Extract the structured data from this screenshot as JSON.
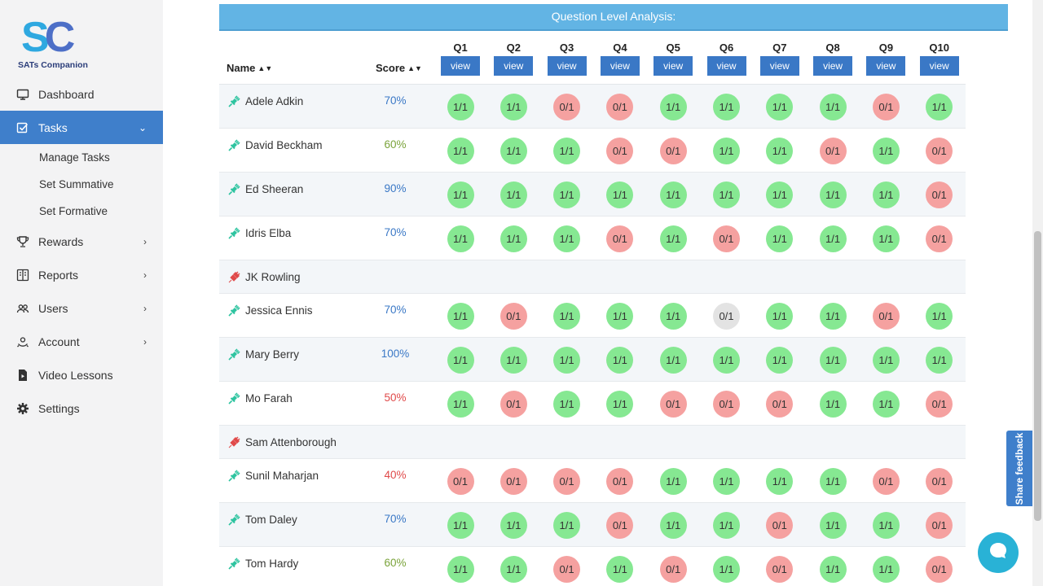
{
  "brand": {
    "logo_text": "SATs Companion"
  },
  "sidebar": {
    "items": [
      {
        "label": "Dashboard",
        "icon": "monitor-icon"
      },
      {
        "label": "Tasks",
        "icon": "tasks-icon",
        "active": true
      },
      {
        "label": "Rewards",
        "icon": "trophy-icon"
      },
      {
        "label": "Reports",
        "icon": "reports-icon"
      },
      {
        "label": "Users",
        "icon": "users-icon"
      },
      {
        "label": "Account",
        "icon": "account-icon"
      },
      {
        "label": "Video Lessons",
        "icon": "video-file-icon"
      },
      {
        "label": "Settings",
        "icon": "gear-icon"
      }
    ],
    "tasks_sub": [
      "Manage Tasks",
      "Set Summative",
      "Set Formative"
    ]
  },
  "analysis": {
    "title": "Question Level Analysis:",
    "name_header": "Name",
    "score_header": "Score",
    "view_label": "view",
    "questions": [
      "Q1",
      "Q2",
      "Q3",
      "Q4",
      "Q5",
      "Q6",
      "Q7",
      "Q8",
      "Q9",
      "Q10"
    ],
    "rows": [
      {
        "name": "Adele Adkin",
        "score": "70%",
        "score_color": "#3a78c6",
        "connected": true,
        "results": [
          "1/1",
          "1/1",
          "0/1",
          "0/1",
          "1/1",
          "1/1",
          "1/1",
          "1/1",
          "0/1",
          "1/1"
        ],
        "status": [
          "g",
          "g",
          "r",
          "r",
          "g",
          "g",
          "g",
          "g",
          "r",
          "g"
        ]
      },
      {
        "name": "David Beckham",
        "score": "60%",
        "score_color": "#7aa33a",
        "connected": true,
        "results": [
          "1/1",
          "1/1",
          "1/1",
          "0/1",
          "0/1",
          "1/1",
          "1/1",
          "0/1",
          "1/1",
          "0/1"
        ],
        "status": [
          "g",
          "g",
          "g",
          "r",
          "r",
          "g",
          "g",
          "r",
          "g",
          "r"
        ]
      },
      {
        "name": "Ed Sheeran",
        "score": "90%",
        "score_color": "#3a78c6",
        "connected": true,
        "results": [
          "1/1",
          "1/1",
          "1/1",
          "1/1",
          "1/1",
          "1/1",
          "1/1",
          "1/1",
          "1/1",
          "0/1"
        ],
        "status": [
          "g",
          "g",
          "g",
          "g",
          "g",
          "g",
          "g",
          "g",
          "g",
          "r"
        ]
      },
      {
        "name": "Idris Elba",
        "score": "70%",
        "score_color": "#3a78c6",
        "connected": true,
        "results": [
          "1/1",
          "1/1",
          "1/1",
          "0/1",
          "1/1",
          "0/1",
          "1/1",
          "1/1",
          "1/1",
          "0/1"
        ],
        "status": [
          "g",
          "g",
          "g",
          "r",
          "g",
          "r",
          "g",
          "g",
          "g",
          "r"
        ]
      },
      {
        "name": "JK Rowling",
        "score": "",
        "score_color": "#333333",
        "connected": false,
        "results": [],
        "status": []
      },
      {
        "name": "Jessica Ennis",
        "score": "70%",
        "score_color": "#3a78c6",
        "connected": true,
        "results": [
          "1/1",
          "0/1",
          "1/1",
          "1/1",
          "1/1",
          "0/1",
          "1/1",
          "1/1",
          "0/1",
          "1/1"
        ],
        "status": [
          "g",
          "r",
          "g",
          "g",
          "g",
          "x",
          "g",
          "g",
          "r",
          "g"
        ]
      },
      {
        "name": "Mary Berry",
        "score": "100%",
        "score_color": "#3a78c6",
        "connected": true,
        "results": [
          "1/1",
          "1/1",
          "1/1",
          "1/1",
          "1/1",
          "1/1",
          "1/1",
          "1/1",
          "1/1",
          "1/1"
        ],
        "status": [
          "g",
          "g",
          "g",
          "g",
          "g",
          "g",
          "g",
          "g",
          "g",
          "g"
        ]
      },
      {
        "name": "Mo Farah",
        "score": "50%",
        "score_color": "#e04a4a",
        "connected": true,
        "results": [
          "1/1",
          "0/1",
          "1/1",
          "1/1",
          "0/1",
          "0/1",
          "0/1",
          "1/1",
          "1/1",
          "0/1"
        ],
        "status": [
          "g",
          "r",
          "g",
          "g",
          "r",
          "r",
          "r",
          "g",
          "g",
          "r"
        ]
      },
      {
        "name": "Sam Attenborough",
        "score": "",
        "score_color": "#333333",
        "connected": false,
        "results": [],
        "status": []
      },
      {
        "name": "Sunil Maharjan",
        "score": "40%",
        "score_color": "#e04a4a",
        "connected": true,
        "results": [
          "0/1",
          "0/1",
          "0/1",
          "0/1",
          "1/1",
          "1/1",
          "1/1",
          "1/1",
          "0/1",
          "0/1"
        ],
        "status": [
          "r",
          "r",
          "r",
          "r",
          "g",
          "g",
          "g",
          "g",
          "r",
          "r"
        ]
      },
      {
        "name": "Tom Daley",
        "score": "70%",
        "score_color": "#3a78c6",
        "connected": true,
        "results": [
          "1/1",
          "1/1",
          "1/1",
          "0/1",
          "1/1",
          "1/1",
          "0/1",
          "1/1",
          "1/1",
          "0/1"
        ],
        "status": [
          "g",
          "g",
          "g",
          "r",
          "g",
          "g",
          "r",
          "g",
          "g",
          "r"
        ]
      },
      {
        "name": "Tom Hardy",
        "score": "60%",
        "score_color": "#7aa33a",
        "connected": true,
        "results": [
          "1/1",
          "1/1",
          "0/1",
          "1/1",
          "0/1",
          "1/1",
          "0/1",
          "1/1",
          "1/1",
          "0/1"
        ],
        "status": [
          "g",
          "g",
          "r",
          "g",
          "r",
          "g",
          "r",
          "g",
          "g",
          "r"
        ]
      }
    ]
  },
  "feedback": {
    "label": "Share feedback"
  },
  "colors": {
    "accent": "#3f7fcb",
    "header": "#62b4e4",
    "correct": "#86e892",
    "wrong": "#f5a1a0",
    "unanswered": "#e3e3e3",
    "connected_icon": "#2ec4a0",
    "disconnected_icon": "#e04a4a"
  }
}
